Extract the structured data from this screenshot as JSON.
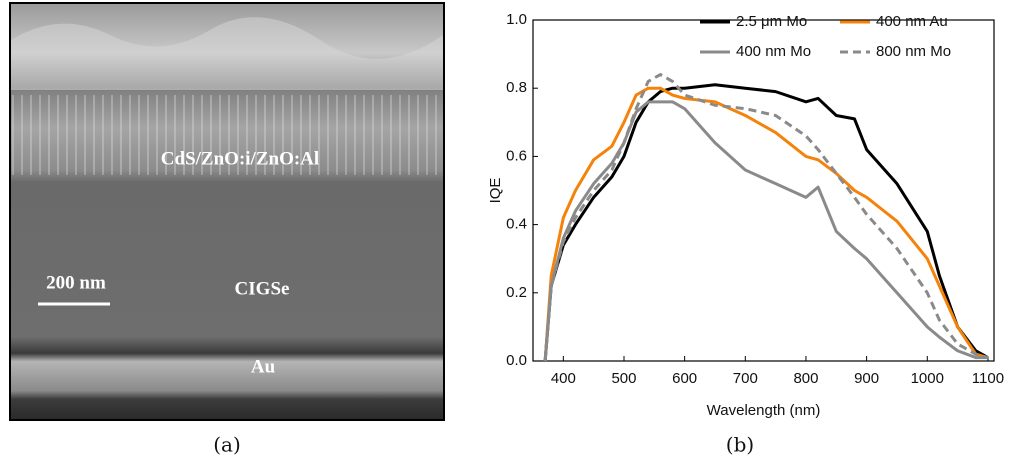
{
  "panel_a": {
    "labels": [
      "CdS/ZnO:i/ZnO:Al",
      "200 nm",
      "CIGSe",
      "Au"
    ],
    "caption": "(a)"
  },
  "chart_data": {
    "type": "line",
    "caption": "(b)",
    "x_label": "Wavelength (nm)",
    "y_label": "IQE",
    "x": [
      370,
      380,
      400,
      420,
      450,
      480,
      500,
      520,
      540,
      560,
      580,
      600,
      650,
      700,
      750,
      800,
      820,
      850,
      880,
      900,
      950,
      1000,
      1020,
      1050,
      1080,
      1100
    ],
    "series": [
      {
        "name": "2.5 μm Mo",
        "color": "#000000",
        "dashed": false,
        "values": [
          0,
          0.22,
          0.34,
          0.4,
          0.48,
          0.54,
          0.6,
          0.7,
          0.76,
          0.79,
          0.8,
          0.8,
          0.81,
          0.8,
          0.79,
          0.76,
          0.77,
          0.72,
          0.71,
          0.62,
          0.52,
          0.38,
          0.25,
          0.1,
          0.03,
          0.01
        ]
      },
      {
        "name": "400 nm Au",
        "color": "#f5820a",
        "dashed": false,
        "values": [
          0,
          0.25,
          0.42,
          0.5,
          0.59,
          0.63,
          0.7,
          0.78,
          0.8,
          0.8,
          0.78,
          0.77,
          0.76,
          0.72,
          0.67,
          0.6,
          0.59,
          0.55,
          0.5,
          0.48,
          0.41,
          0.3,
          0.22,
          0.1,
          0.02,
          0.01
        ]
      },
      {
        "name": "400 nm Mo",
        "color": "#8a8a8a",
        "dashed": false,
        "values": [
          0,
          0.22,
          0.36,
          0.44,
          0.52,
          0.58,
          0.64,
          0.73,
          0.76,
          0.76,
          0.76,
          0.74,
          0.64,
          0.56,
          0.52,
          0.48,
          0.51,
          0.38,
          0.33,
          0.3,
          0.2,
          0.1,
          0.07,
          0.03,
          0.01,
          0.01
        ]
      },
      {
        "name": "800 nm Mo",
        "color": "#8a8a8a",
        "dashed": true,
        "values": [
          0,
          0.22,
          0.35,
          0.42,
          0.5,
          0.56,
          0.64,
          0.74,
          0.82,
          0.84,
          0.82,
          0.78,
          0.75,
          0.74,
          0.72,
          0.66,
          0.62,
          0.55,
          0.48,
          0.43,
          0.33,
          0.2,
          0.12,
          0.05,
          0.02,
          0.01
        ]
      }
    ],
    "xlim": [
      350,
      1110
    ],
    "ylim": [
      0,
      1
    ],
    "xticks": [
      400,
      500,
      600,
      700,
      800,
      900,
      1000,
      1100
    ],
    "yticks": [
      {
        "value": 0,
        "label": "0.0"
      },
      0.2,
      0.4,
      0.6,
      0.8,
      {
        "value": 1,
        "label": "1.0"
      }
    ],
    "legend": "top"
  }
}
